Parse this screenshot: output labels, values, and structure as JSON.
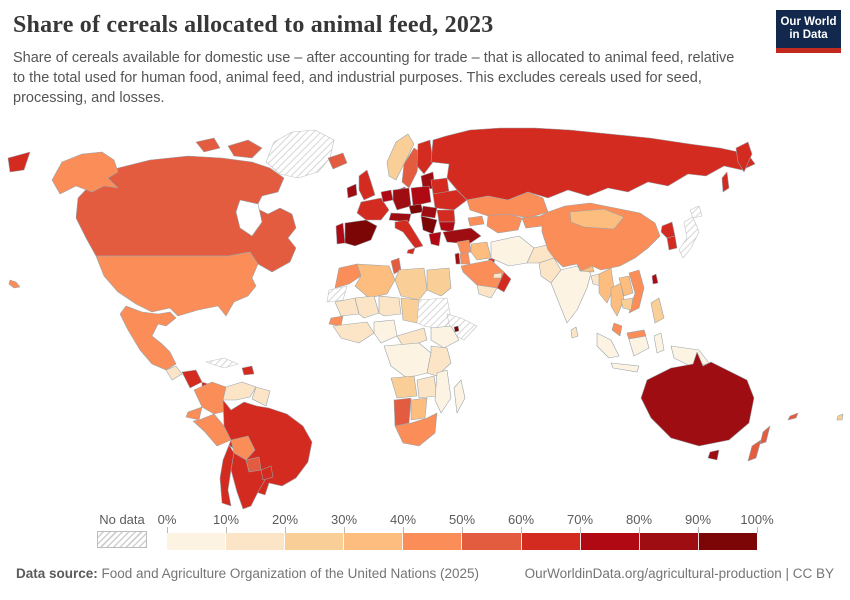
{
  "header": {
    "title": "Share of cereals allocated to animal feed, 2023",
    "subtitle": "Share of cereals available for domestic use – after accounting for trade – that is allocated to animal feed, relative to the total used for human food, animal feed, and industrial purposes. This excludes cereals used for seed, processing, and losses.",
    "logo_line1": "Our World",
    "logo_line2": "in Data",
    "logo_bg": "#12284C",
    "logo_accent": "#C12A1D"
  },
  "legend": {
    "no_data_label": "No data",
    "tick_labels": [
      "0%",
      "10%",
      "20%",
      "30%",
      "40%",
      "50%",
      "60%",
      "70%",
      "80%",
      "90%",
      "100%"
    ],
    "bin_colors": [
      "#FDF3E3",
      "#FBE5C6",
      "#F9CF97",
      "#FCBD7E",
      "#FB8D58",
      "#E35C40",
      "#D42B20",
      "#B00913",
      "#9E0D11",
      "#7C0506"
    ]
  },
  "footer": {
    "source_label": "Data source:",
    "source_text": " Food and Agriculture Organization of the United Nations (2025)",
    "link_text": "OurWorldinData.org/agricultural-production",
    "license_text": " | CC BY"
  },
  "map": {
    "border_color": "#9aa4ab",
    "no_data_border": "#c2c2c2",
    "sea_color": "#ffffff",
    "countries": {
      "greenland": "nodata",
      "canada": 5,
      "arctic-islands-1": 5,
      "arctic-islands-2": 5,
      "alaska": 4,
      "usa": 4,
      "hawaii": 4,
      "chukotka": 6,
      "mexico": 4,
      "guatemala": 1,
      "honduras-nicaragua": 6,
      "costa-rica-panama": 6,
      "cuba": "nodata",
      "hispaniola": 6,
      "colombia": 4,
      "venezuela": 1,
      "guyanas": 1,
      "ecuador": 4,
      "peru": 4,
      "brazil": 6,
      "bolivia": 4,
      "paraguay": 5,
      "chile": 6,
      "argentina": 6,
      "uruguay": 6,
      "iceland": 5,
      "ireland": 8,
      "uk": 6,
      "norway": 2,
      "sweden": 5,
      "finland": 6,
      "denmark": 8,
      "baltics": 8,
      "portugal": 7,
      "spain": 9,
      "france": 6,
      "belgium-netherlands": 7,
      "germany": 8,
      "poland": 7,
      "belarus": 6,
      "ukraine": 6,
      "czechia": 9,
      "austria-switzerland": 8,
      "hungary-slovakia": 8,
      "romania": 6,
      "bulgaria": 7,
      "balkans": 9,
      "greece": 7,
      "italy": 6,
      "sicily": 6,
      "turkey": 8,
      "russia": 6,
      "kamchatka": 6,
      "sakhalin": 6,
      "kazakhstan": 4,
      "uzbek-turkmen": 4,
      "kyrgyz-tajik": 5,
      "caucasus": 4,
      "syria": 4,
      "israel": 8,
      "jordan": 4,
      "iraq": 3,
      "kuwait": 6,
      "saudi-arabia": 4,
      "yemen": 1,
      "oman": 6,
      "uae": 1,
      "iran": 0,
      "afghanistan": 1,
      "pakistan": 1,
      "india": 0,
      "nepal": 3,
      "bangladesh": 1,
      "sri-lanka": 1,
      "myanmar": 3,
      "thailand": 3,
      "laos": 3,
      "vietnam": 4,
      "cambodia": 2,
      "malaysia": 4,
      "malaysia-borneo": 4,
      "sumatra": 0,
      "java": 0,
      "borneo": 0,
      "sulawesi": 0,
      "new-guinea": 0,
      "philippines": 2,
      "china": 4,
      "mongolia": 3,
      "north-korea": 6,
      "south-korea": 6,
      "taiwan": 7,
      "japan": "nodata",
      "hokkaido": "nodata",
      "morocco": 4,
      "western-sahara": "nodata",
      "algeria": 3,
      "tunisia": 5,
      "libya": 2,
      "egypt": 2,
      "mauritania": 1,
      "mali": 1,
      "niger": 1,
      "chad": 2,
      "sudan": "nodata",
      "horn-somalia": "nodata",
      "ethiopia": 0,
      "djibouti": 9,
      "senegal": 4,
      "west-africa": 1,
      "nigeria": 0,
      "cameroon-car": 1,
      "congo-basin": 0,
      "east-africa": 1,
      "angola": 2,
      "zambia-zimbabwe": 1,
      "mozambique": 0,
      "madagascar": 0,
      "namibia": 5,
      "botswana": 3,
      "south-africa": 4,
      "australia": 8,
      "tasmania": 8,
      "new-zealand-north": 5,
      "new-zealand-south": 5,
      "new-caledonia": 5,
      "fiji": 2
    }
  }
}
